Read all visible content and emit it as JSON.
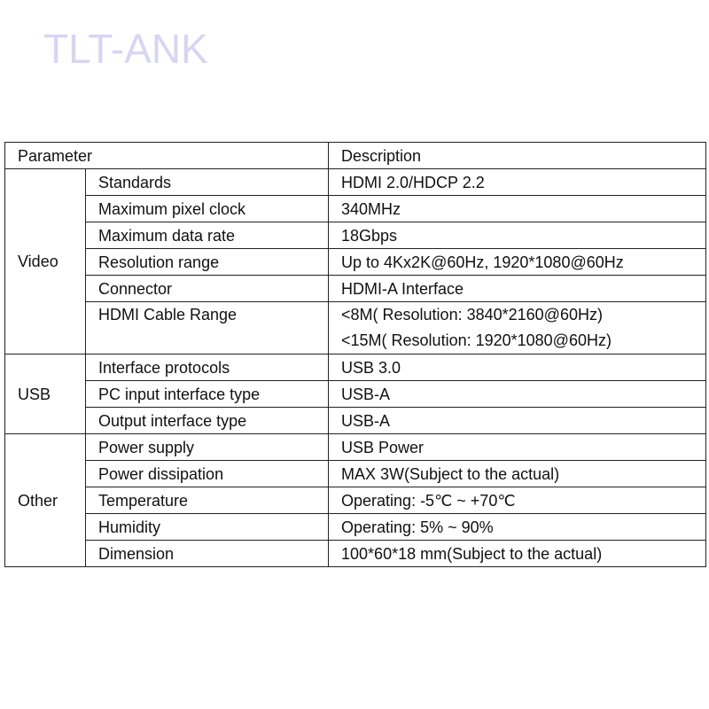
{
  "watermark": "TLT-ANK",
  "table": {
    "headers": {
      "parameter": "Parameter",
      "description": "Description"
    },
    "groups": [
      {
        "name": "Video",
        "rows": [
          {
            "param": "Standards",
            "desc": [
              "HDMI 2.0/HDCP 2.2"
            ]
          },
          {
            "param": "Maximum pixel clock",
            "desc": [
              "340MHz"
            ]
          },
          {
            "param": "Maximum data rate",
            "desc": [
              "18Gbps"
            ]
          },
          {
            "param": "Resolution range",
            "desc": [
              "Up to 4Kx2K@60Hz, 1920*1080@60Hz"
            ]
          },
          {
            "param": "Connector",
            "desc": [
              "HDMI-A Interface"
            ]
          },
          {
            "param": "HDMI Cable Range",
            "desc": [
              "<8M( Resolution: 3840*2160@60Hz)",
              "<15M( Resolution: 1920*1080@60Hz)"
            ]
          }
        ]
      },
      {
        "name": "USB",
        "rows": [
          {
            "param": "Interface protocols",
            "desc": [
              "USB 3.0"
            ]
          },
          {
            "param": "PC input interface type",
            "desc": [
              "USB-A"
            ]
          },
          {
            "param": "Output interface type",
            "desc": [
              "USB-A"
            ]
          }
        ]
      },
      {
        "name": "Other",
        "rows": [
          {
            "param": "Power supply",
            "desc": [
              "USB Power"
            ]
          },
          {
            "param": "Power dissipation",
            "desc": [
              "MAX 3W(Subject to the actual)"
            ]
          },
          {
            "param": "Temperature",
            "desc": [
              "Operating: -5℃ ~ +70℃"
            ]
          },
          {
            "param": "Humidity",
            "desc": [
              "Operating: 5% ~ 90%"
            ]
          },
          {
            "param": "Dimension",
            "desc": [
              "100*60*18 mm(Subject to the actual)"
            ]
          }
        ]
      }
    ]
  }
}
